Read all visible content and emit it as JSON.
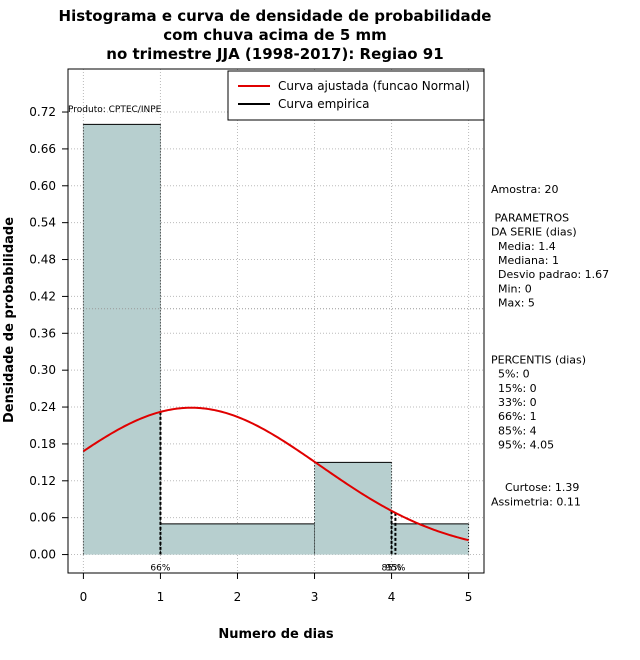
{
  "chart_data": {
    "type": "histogram",
    "title_lines": [
      "Histograma e curva de densidade de probabilidade",
      "com chuva acima de 5 mm",
      "no trimestre JJA (1998-2017): Regiao 91"
    ],
    "xlabel": "Numero de dias",
    "ylabel": "Densidade de probabilidade",
    "xlim": [
      -0.2,
      5.2
    ],
    "ylim": [
      -0.03,
      0.79
    ],
    "x_ticks": [
      "0",
      "1",
      "2",
      "3",
      "4",
      "5"
    ],
    "y_ticks": [
      "0.00",
      "0.06",
      "0.12",
      "0.18",
      "0.24",
      "0.30",
      "0.36",
      "0.42",
      "0.48",
      "0.54",
      "0.60",
      "0.66",
      "0.72"
    ],
    "bins": [
      {
        "x0": 0,
        "x1": 1,
        "density": 0.7
      },
      {
        "x0": 1,
        "x1": 3,
        "density": 0.05
      },
      {
        "x0": 3,
        "x1": 4,
        "density": 0.15
      },
      {
        "x0": 4,
        "x1": 5,
        "density": 0.05
      }
    ],
    "normal_curve": {
      "mean": 1.4,
      "sd": 1.67,
      "color": "#e00000"
    },
    "percentile_lines": [
      {
        "x": 1,
        "label": "66%"
      },
      {
        "x": 4,
        "label": "85%"
      },
      {
        "x": 4.05,
        "label": "95%"
      }
    ],
    "reference_line_y": 0.4,
    "credit": "Produto: CPTEC/INPE",
    "bar_color": "#b7cfcf",
    "legend": [
      {
        "label": "Curva ajustada (funcao Normal)",
        "color": "#e00000"
      },
      {
        "label": "Curva empirica",
        "color": "#000000"
      }
    ]
  },
  "stats": [
    "Amostra: 20",
    "",
    " PARAMETROS",
    "DA SERIE (dias)",
    "  Media: 1.4",
    "  Mediana: 1",
    "  Desvio padrao: 1.67",
    "  Min: 0",
    "  Max: 5",
    "",
    "",
    "",
    "PERCENTIS (dias)",
    "  5%: 0",
    "  15%: 0",
    "  33%: 0",
    "  66%: 1",
    "  85%: 4",
    "  95%: 4.05",
    "",
    "",
    "    Curtose: 1.39",
    "Assimetria: 0.11"
  ]
}
